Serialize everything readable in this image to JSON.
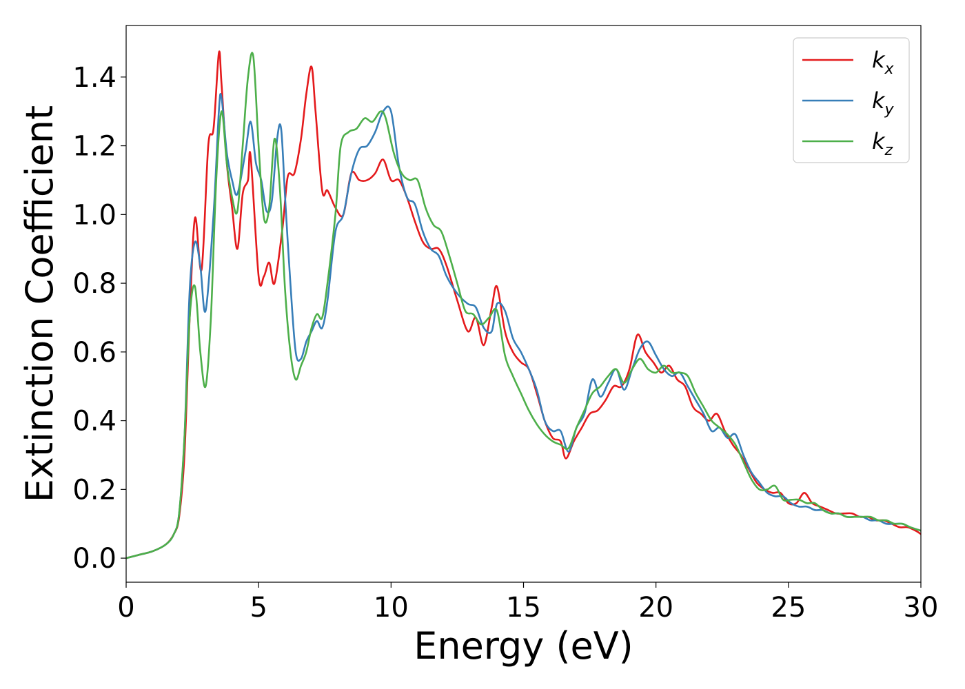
{
  "chart_data": {
    "type": "line",
    "xlabel": "Energy (eV)",
    "ylabel": "Extinction Coefficient",
    "xlim": [
      0,
      30
    ],
    "ylim": [
      -0.07,
      1.55
    ],
    "xticks": [
      "0",
      "5",
      "10",
      "15",
      "20",
      "25",
      "30"
    ],
    "yticks": [
      "0.0",
      "0.2",
      "0.4",
      "0.6",
      "0.8",
      "1.0",
      "1.2",
      "1.4"
    ],
    "legend": {
      "placement": "top-right"
    },
    "grid": false,
    "series": [
      {
        "name": "k",
        "subscript": "x",
        "color": "#e41a1c",
        "x": [
          0,
          0.5,
          1.0,
          1.5,
          1.8,
          2.0,
          2.2,
          2.4,
          2.6,
          2.85,
          3.1,
          3.3,
          3.5,
          3.6,
          3.8,
          4.0,
          4.2,
          4.4,
          4.6,
          4.7,
          5.0,
          5.2,
          5.4,
          5.6,
          5.9,
          6.1,
          6.35,
          6.6,
          6.8,
          7.0,
          7.15,
          7.4,
          7.6,
          7.9,
          8.2,
          8.5,
          8.8,
          9.1,
          9.4,
          9.7,
          10.0,
          10.3,
          10.6,
          10.9,
          11.2,
          11.5,
          11.8,
          12.1,
          12.5,
          12.9,
          13.2,
          13.5,
          13.8,
          14.0,
          14.3,
          14.6,
          14.9,
          15.2,
          15.5,
          15.8,
          16.1,
          16.4,
          16.6,
          16.9,
          17.2,
          17.5,
          17.8,
          18.1,
          18.4,
          18.7,
          19.0,
          19.3,
          19.6,
          19.9,
          20.2,
          20.5,
          20.8,
          21.1,
          21.4,
          21.7,
          22.0,
          22.3,
          22.6,
          22.9,
          23.2,
          23.5,
          23.8,
          24.1,
          24.4,
          24.7,
          25.0,
          25.3,
          25.6,
          25.9,
          26.2,
          26.5,
          26.8,
          27.1,
          27.4,
          27.7,
          28.0,
          28.3,
          28.6,
          28.9,
          29.2,
          29.5,
          29.8,
          30.0
        ],
        "values": [
          0.0,
          0.01,
          0.02,
          0.04,
          0.07,
          0.12,
          0.3,
          0.7,
          0.99,
          0.84,
          1.2,
          1.25,
          1.47,
          1.38,
          1.15,
          1.02,
          0.9,
          1.06,
          1.1,
          1.17,
          0.82,
          0.82,
          0.86,
          0.8,
          0.96,
          1.11,
          1.12,
          1.22,
          1.35,
          1.43,
          1.3,
          1.07,
          1.07,
          1.02,
          1.0,
          1.12,
          1.1,
          1.1,
          1.12,
          1.16,
          1.1,
          1.1,
          1.05,
          0.98,
          0.92,
          0.9,
          0.9,
          0.85,
          0.75,
          0.66,
          0.7,
          0.62,
          0.73,
          0.79,
          0.66,
          0.6,
          0.57,
          0.55,
          0.48,
          0.4,
          0.35,
          0.34,
          0.29,
          0.34,
          0.38,
          0.42,
          0.43,
          0.46,
          0.5,
          0.5,
          0.55,
          0.65,
          0.6,
          0.57,
          0.54,
          0.56,
          0.52,
          0.5,
          0.44,
          0.42,
          0.4,
          0.42,
          0.37,
          0.33,
          0.3,
          0.26,
          0.22,
          0.2,
          0.19,
          0.19,
          0.16,
          0.16,
          0.19,
          0.16,
          0.15,
          0.14,
          0.13,
          0.13,
          0.13,
          0.12,
          0.12,
          0.11,
          0.11,
          0.1,
          0.09,
          0.09,
          0.08,
          0.07
        ]
      },
      {
        "name": "k",
        "subscript": "y",
        "color": "#377eb8",
        "x": [
          0,
          0.5,
          1.0,
          1.5,
          1.8,
          2.0,
          2.2,
          2.4,
          2.6,
          2.8,
          3.0,
          3.3,
          3.5,
          3.6,
          3.8,
          4.0,
          4.2,
          4.5,
          4.7,
          4.9,
          5.1,
          5.3,
          5.5,
          5.7,
          5.85,
          6.0,
          6.2,
          6.4,
          6.6,
          6.8,
          7.0,
          7.2,
          7.4,
          7.6,
          7.9,
          8.2,
          8.5,
          8.8,
          9.1,
          9.4,
          9.7,
          10.0,
          10.3,
          10.6,
          10.9,
          11.2,
          11.5,
          11.8,
          12.1,
          12.5,
          12.9,
          13.2,
          13.5,
          13.8,
          14.0,
          14.3,
          14.6,
          14.9,
          15.2,
          15.5,
          15.8,
          16.1,
          16.4,
          16.7,
          17.0,
          17.3,
          17.6,
          17.9,
          18.2,
          18.5,
          18.8,
          19.1,
          19.4,
          19.7,
          20.0,
          20.3,
          20.6,
          20.9,
          21.2,
          21.5,
          21.8,
          22.1,
          22.4,
          22.7,
          23.0,
          23.3,
          23.6,
          23.9,
          24.2,
          24.5,
          24.8,
          25.1,
          25.4,
          25.7,
          26.0,
          26.3,
          26.6,
          26.9,
          27.2,
          27.5,
          27.8,
          28.1,
          28.4,
          28.7,
          29.0,
          29.3,
          29.6,
          30.0
        ],
        "values": [
          0.0,
          0.01,
          0.02,
          0.04,
          0.07,
          0.13,
          0.35,
          0.78,
          0.92,
          0.85,
          0.72,
          1.0,
          1.3,
          1.34,
          1.18,
          1.1,
          1.06,
          1.18,
          1.27,
          1.15,
          1.1,
          1.01,
          1.04,
          1.22,
          1.25,
          1.05,
          0.8,
          0.6,
          0.58,
          0.63,
          0.66,
          0.69,
          0.67,
          0.75,
          0.95,
          1.0,
          1.12,
          1.19,
          1.2,
          1.24,
          1.3,
          1.3,
          1.14,
          1.05,
          1.03,
          0.95,
          0.9,
          0.88,
          0.82,
          0.77,
          0.74,
          0.73,
          0.67,
          0.66,
          0.74,
          0.72,
          0.64,
          0.6,
          0.55,
          0.49,
          0.4,
          0.37,
          0.37,
          0.31,
          0.38,
          0.42,
          0.52,
          0.47,
          0.51,
          0.55,
          0.49,
          0.55,
          0.61,
          0.63,
          0.59,
          0.55,
          0.53,
          0.54,
          0.5,
          0.46,
          0.42,
          0.37,
          0.38,
          0.35,
          0.36,
          0.3,
          0.25,
          0.22,
          0.19,
          0.18,
          0.18,
          0.16,
          0.15,
          0.15,
          0.14,
          0.14,
          0.13,
          0.13,
          0.12,
          0.12,
          0.12,
          0.11,
          0.11,
          0.1,
          0.1,
          0.1,
          0.09,
          0.08
        ]
      },
      {
        "name": "k",
        "subscript": "z",
        "color": "#4daf4a",
        "x": [
          0,
          0.5,
          1.0,
          1.5,
          1.8,
          2.0,
          2.2,
          2.4,
          2.6,
          2.8,
          3.0,
          3.2,
          3.4,
          3.6,
          3.8,
          4.0,
          4.2,
          4.4,
          4.6,
          4.8,
          5.0,
          5.2,
          5.4,
          5.6,
          5.8,
          6.0,
          6.2,
          6.4,
          6.6,
          6.8,
          7.0,
          7.2,
          7.4,
          7.6,
          7.9,
          8.1,
          8.4,
          8.7,
          9.0,
          9.3,
          9.6,
          9.8,
          10.1,
          10.4,
          10.7,
          11.0,
          11.3,
          11.6,
          11.9,
          12.2,
          12.5,
          12.8,
          13.1,
          13.4,
          13.7,
          14.0,
          14.3,
          14.6,
          14.9,
          15.2,
          15.5,
          15.8,
          16.1,
          16.4,
          16.7,
          17.0,
          17.3,
          17.6,
          17.9,
          18.2,
          18.5,
          18.8,
          19.1,
          19.4,
          19.7,
          20.0,
          20.3,
          20.6,
          20.9,
          21.2,
          21.5,
          21.8,
          22.1,
          22.4,
          22.7,
          23.0,
          23.3,
          23.6,
          23.9,
          24.2,
          24.5,
          24.8,
          25.1,
          25.4,
          25.7,
          26.0,
          26.3,
          26.6,
          26.9,
          27.2,
          27.5,
          27.8,
          28.1,
          28.4,
          28.7,
          29.0,
          29.3,
          29.6,
          30.0
        ],
        "values": [
          0.0,
          0.01,
          0.02,
          0.04,
          0.07,
          0.13,
          0.35,
          0.7,
          0.79,
          0.6,
          0.5,
          0.7,
          1.1,
          1.3,
          1.15,
          1.05,
          1.01,
          1.2,
          1.4,
          1.46,
          1.2,
          0.99,
          1.02,
          1.22,
          1.08,
          0.78,
          0.6,
          0.52,
          0.56,
          0.6,
          0.67,
          0.71,
          0.7,
          0.8,
          1.0,
          1.2,
          1.24,
          1.25,
          1.28,
          1.27,
          1.3,
          1.28,
          1.18,
          1.12,
          1.1,
          1.1,
          1.02,
          0.97,
          0.95,
          0.88,
          0.8,
          0.72,
          0.71,
          0.68,
          0.7,
          0.72,
          0.59,
          0.53,
          0.48,
          0.43,
          0.39,
          0.36,
          0.34,
          0.33,
          0.32,
          0.38,
          0.43,
          0.48,
          0.5,
          0.53,
          0.55,
          0.51,
          0.55,
          0.58,
          0.55,
          0.54,
          0.56,
          0.54,
          0.54,
          0.53,
          0.48,
          0.44,
          0.4,
          0.38,
          0.36,
          0.33,
          0.28,
          0.23,
          0.2,
          0.2,
          0.21,
          0.17,
          0.17,
          0.17,
          0.16,
          0.16,
          0.14,
          0.13,
          0.13,
          0.12,
          0.12,
          0.12,
          0.12,
          0.11,
          0.11,
          0.1,
          0.1,
          0.09,
          0.08
        ]
      }
    ]
  }
}
